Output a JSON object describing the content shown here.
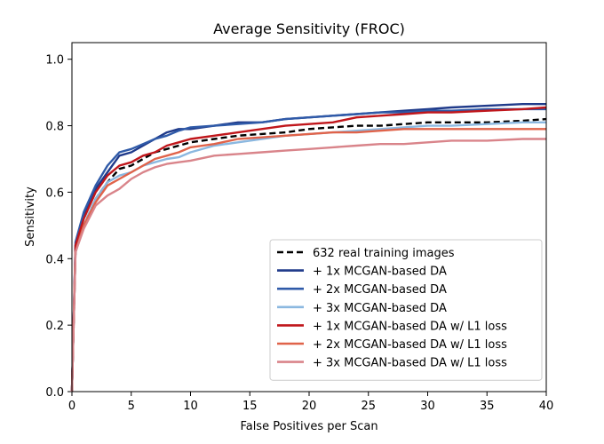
{
  "chart_data": {
    "type": "line",
    "title": "Average Sensitivity (FROC)",
    "xlabel": "False Positives per Scan",
    "ylabel": "Sensitivity",
    "xlim": [
      0,
      40
    ],
    "ylim": [
      0,
      1.05
    ],
    "xticks": [
      0,
      5,
      10,
      15,
      20,
      25,
      30,
      35,
      40
    ],
    "yticks": [
      0.0,
      0.2,
      0.4,
      0.6,
      0.8,
      1.0
    ],
    "xtick_labels": [
      "0",
      "5",
      "10",
      "15",
      "20",
      "25",
      "30",
      "35",
      "40"
    ],
    "ytick_labels": [
      "0.0",
      "0.2",
      "0.4",
      "0.6",
      "0.8",
      "1.0"
    ],
    "grid": false,
    "legend_position": "bottom-right",
    "series": [
      {
        "name": "632 real training images",
        "color": "#000000",
        "dashed": true,
        "x": [
          0,
          0.3,
          1,
          2,
          3,
          4,
          5,
          6,
          7,
          8,
          9,
          10,
          12,
          14,
          16,
          18,
          20,
          22,
          24,
          26,
          28,
          30,
          32,
          35,
          38,
          40
        ],
        "y": [
          0.0,
          0.42,
          0.5,
          0.58,
          0.63,
          0.67,
          0.68,
          0.7,
          0.72,
          0.73,
          0.74,
          0.75,
          0.76,
          0.77,
          0.775,
          0.78,
          0.79,
          0.795,
          0.8,
          0.8,
          0.805,
          0.81,
          0.81,
          0.81,
          0.815,
          0.82
        ]
      },
      {
        "name": "+ 1x MCGAN-based DA",
        "color": "#1f3a8a",
        "dashed": false,
        "x": [
          0,
          0.3,
          1,
          2,
          3,
          4,
          5,
          6,
          7,
          8,
          9,
          10,
          12,
          14,
          16,
          18,
          20,
          22,
          24,
          26,
          28,
          30,
          32,
          35,
          38,
          40
        ],
        "y": [
          0.0,
          0.44,
          0.53,
          0.61,
          0.66,
          0.71,
          0.72,
          0.74,
          0.76,
          0.78,
          0.79,
          0.79,
          0.8,
          0.81,
          0.81,
          0.82,
          0.825,
          0.83,
          0.835,
          0.84,
          0.845,
          0.85,
          0.855,
          0.86,
          0.865,
          0.865
        ]
      },
      {
        "name": "+ 2x MCGAN-based DA",
        "color": "#2f5aa8",
        "dashed": false,
        "x": [
          0,
          0.3,
          1,
          2,
          3,
          4,
          5,
          6,
          7,
          8,
          9,
          10,
          12,
          14,
          16,
          18,
          20,
          22,
          24,
          26,
          28,
          30,
          32,
          35,
          38,
          40
        ],
        "y": [
          0.0,
          0.45,
          0.54,
          0.62,
          0.68,
          0.72,
          0.73,
          0.745,
          0.76,
          0.77,
          0.785,
          0.795,
          0.8,
          0.805,
          0.81,
          0.82,
          0.825,
          0.83,
          0.835,
          0.84,
          0.84,
          0.845,
          0.845,
          0.85,
          0.85,
          0.85
        ]
      },
      {
        "name": "+ 3x MCGAN-based DA",
        "color": "#8bb8e0",
        "dashed": false,
        "x": [
          0,
          0.3,
          1,
          2,
          3,
          4,
          5,
          6,
          7,
          8,
          9,
          10,
          12,
          14,
          16,
          18,
          20,
          22,
          24,
          26,
          28,
          30,
          32,
          35,
          38,
          40
        ],
        "y": [
          0.0,
          0.42,
          0.5,
          0.58,
          0.63,
          0.65,
          0.66,
          0.68,
          0.69,
          0.7,
          0.705,
          0.72,
          0.74,
          0.75,
          0.76,
          0.77,
          0.775,
          0.78,
          0.785,
          0.79,
          0.795,
          0.8,
          0.8,
          0.805,
          0.81,
          0.81
        ]
      },
      {
        "name": "+ 1x MCGAN-based DA w/ L1 loss",
        "color": "#c0161b",
        "dashed": false,
        "x": [
          0,
          0.3,
          1,
          2,
          3,
          4,
          5,
          6,
          7,
          8,
          9,
          10,
          12,
          14,
          16,
          18,
          20,
          22,
          24,
          26,
          28,
          30,
          32,
          35,
          38,
          40
        ],
        "y": [
          0.0,
          0.44,
          0.52,
          0.6,
          0.65,
          0.68,
          0.69,
          0.71,
          0.72,
          0.74,
          0.75,
          0.76,
          0.77,
          0.78,
          0.79,
          0.8,
          0.805,
          0.81,
          0.825,
          0.83,
          0.835,
          0.84,
          0.84,
          0.845,
          0.85,
          0.855
        ]
      },
      {
        "name": "+ 2x MCGAN-based DA w/ L1 loss",
        "color": "#e0634a",
        "dashed": false,
        "x": [
          0,
          0.3,
          1,
          2,
          3,
          4,
          5,
          6,
          7,
          8,
          9,
          10,
          12,
          14,
          16,
          18,
          20,
          22,
          24,
          26,
          28,
          30,
          32,
          35,
          38,
          40
        ],
        "y": [
          0.0,
          0.42,
          0.5,
          0.57,
          0.62,
          0.64,
          0.66,
          0.68,
          0.7,
          0.71,
          0.72,
          0.735,
          0.745,
          0.76,
          0.765,
          0.77,
          0.775,
          0.78,
          0.78,
          0.785,
          0.79,
          0.79,
          0.79,
          0.79,
          0.79,
          0.79
        ]
      },
      {
        "name": "+ 3x MCGAN-based DA w/ L1 loss",
        "color": "#d9848a",
        "dashed": false,
        "x": [
          0,
          0.3,
          1,
          2,
          3,
          4,
          5,
          6,
          7,
          8,
          9,
          10,
          12,
          14,
          16,
          18,
          20,
          22,
          24,
          26,
          28,
          30,
          32,
          35,
          38,
          40
        ],
        "y": [
          0.0,
          0.42,
          0.49,
          0.56,
          0.59,
          0.61,
          0.64,
          0.66,
          0.675,
          0.685,
          0.69,
          0.695,
          0.71,
          0.715,
          0.72,
          0.725,
          0.73,
          0.735,
          0.74,
          0.745,
          0.745,
          0.75,
          0.755,
          0.755,
          0.76,
          0.76
        ]
      }
    ]
  }
}
